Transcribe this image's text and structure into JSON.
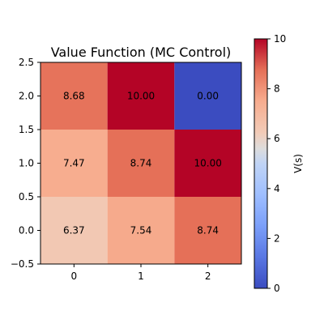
{
  "chart_data": {
    "type": "heatmap",
    "title": "Value Function (MC Control)",
    "x_ticks": [
      "0",
      "1",
      "2"
    ],
    "x_tick_values": [
      0,
      1,
      2
    ],
    "y_ticks": [
      "−0.5",
      "0.0",
      "0.5",
      "1.0",
      "1.5",
      "2.0",
      "2.5"
    ],
    "y_tick_values": [
      -0.5,
      0.0,
      0.5,
      1.0,
      1.5,
      2.0,
      2.5
    ],
    "xlim": [
      -0.5,
      2.5
    ],
    "ylim": [
      -0.5,
      2.5
    ],
    "cells": [
      {
        "x": 0,
        "y": 0,
        "value": 6.37,
        "label": "6.37"
      },
      {
        "x": 1,
        "y": 0,
        "value": 7.54,
        "label": "7.54"
      },
      {
        "x": 2,
        "y": 0,
        "value": 8.74,
        "label": "8.74"
      },
      {
        "x": 0,
        "y": 1,
        "value": 7.47,
        "label": "7.47"
      },
      {
        "x": 1,
        "y": 1,
        "value": 8.74,
        "label": "8.74"
      },
      {
        "x": 2,
        "y": 1,
        "value": 10.0,
        "label": "10.00"
      },
      {
        "x": 0,
        "y": 2,
        "value": 8.68,
        "label": "8.68"
      },
      {
        "x": 1,
        "y": 2,
        "value": 10.0,
        "label": "10.00"
      },
      {
        "x": 2,
        "y": 2,
        "value": 0.0,
        "label": "0.00"
      }
    ],
    "colormap": "coolwarm",
    "colorbar": {
      "label": "V(s)",
      "range": [
        0,
        10
      ],
      "ticks": [
        "0",
        "2",
        "4",
        "6",
        "8",
        "10"
      ],
      "tick_values": [
        0,
        2,
        4,
        6,
        8,
        10
      ]
    },
    "grid": false,
    "legend": "none"
  }
}
